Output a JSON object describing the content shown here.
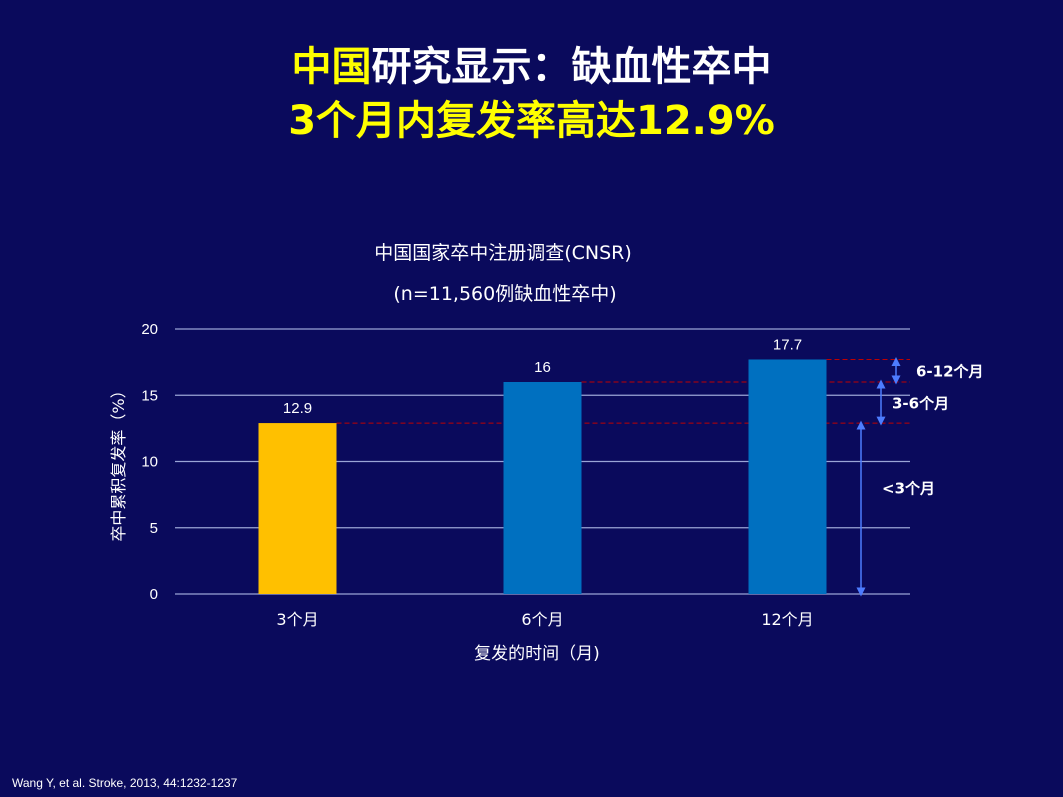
{
  "slide": {
    "title_highlight": "中国",
    "title_line1_rest": "研究显示：缺血性卒中",
    "title_line2": "3个月内复发率高达12.9%",
    "citation": "Wang Y,  et al. Stroke, 2013, 44:1232-1237"
  },
  "chart_data": {
    "type": "bar",
    "title": "中国国家卒中注册调查(CNSR)",
    "subtitle": "(n=11,560例缺血性卒中)",
    "xlabel": "复发的时间（月)",
    "ylabel": "卒中累积复发率（%）",
    "categories": [
      "3个月",
      "6个月",
      "12个月"
    ],
    "values": [
      12.9,
      16,
      17.7
    ],
    "data_labels": [
      "12.9",
      "16",
      "17.7"
    ],
    "bar_colors": [
      "#ffc000",
      "#0070c0",
      "#0070c0"
    ],
    "ylim": [
      0,
      20
    ],
    "yticks": [
      "0",
      "5",
      "10",
      "15",
      "20"
    ],
    "grid": true,
    "annotations": [
      {
        "label": "6-12个月",
        "from": 16,
        "to": 17.7
      },
      {
        "label": "3-6个月",
        "from": 12.9,
        "to": 16
      },
      {
        "label": "<3个月",
        "from": 0,
        "to": 12.9
      }
    ],
    "colors": {
      "gridline": "#9aa5d6",
      "axis_text": "#ffffff",
      "data_label": "#ffffff",
      "reference_line": "#c00000",
      "arrow": "#4d7cff",
      "background": "#0a0a5c"
    }
  }
}
